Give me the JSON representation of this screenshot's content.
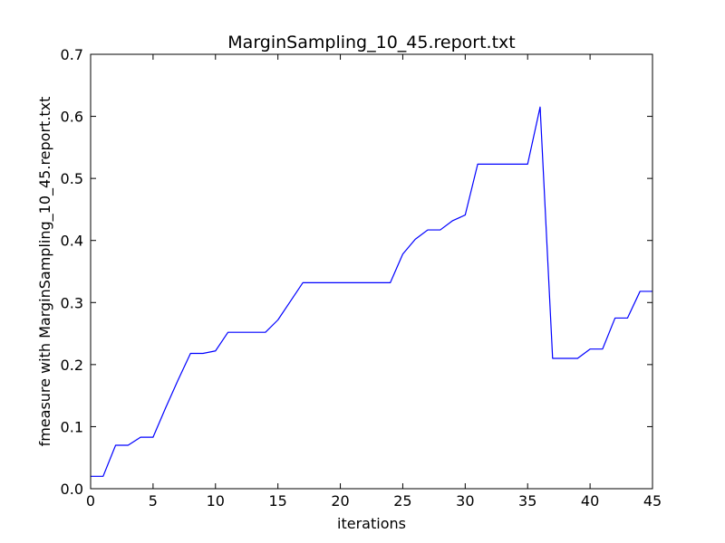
{
  "chart_data": {
    "type": "line",
    "title": "MarginSampling_10_45.report.txt",
    "xlabel": "iterations",
    "ylabel": "fmeasure with MarginSampling_10_45.report.txt",
    "xlim": [
      0,
      45
    ],
    "ylim": [
      0,
      0.7
    ],
    "grid": false,
    "x_ticks": [
      "0",
      "5",
      "10",
      "15",
      "20",
      "25",
      "30",
      "35",
      "40",
      "45"
    ],
    "y_ticks": [
      "0.0",
      "0.1",
      "0.2",
      "0.3",
      "0.4",
      "0.5",
      "0.6",
      "0.7"
    ],
    "line_color": "#0000ff",
    "series": [
      {
        "x": [
          0,
          1,
          2,
          3,
          4,
          5,
          6,
          7,
          8,
          9,
          10,
          11,
          12,
          13,
          14,
          15,
          16,
          17,
          18,
          19,
          20,
          21,
          22,
          23,
          24,
          25,
          26,
          27,
          28,
          29,
          30,
          31,
          32,
          33,
          34,
          35,
          36,
          37,
          38,
          39,
          40,
          41,
          42,
          43,
          44,
          45
        ],
        "y": [
          0.02,
          0.02,
          0.07,
          0.07,
          0.083,
          0.083,
          0.13,
          0.175,
          0.218,
          0.218,
          0.222,
          0.252,
          0.252,
          0.252,
          0.252,
          0.272,
          0.302,
          0.332,
          0.332,
          0.332,
          0.332,
          0.332,
          0.332,
          0.332,
          0.332,
          0.378,
          0.402,
          0.417,
          0.417,
          0.432,
          0.441,
          0.523,
          0.523,
          0.523,
          0.523,
          0.523,
          0.615,
          0.21,
          0.21,
          0.21,
          0.225,
          0.225,
          0.275,
          0.275,
          0.318,
          0.318
        ]
      }
    ]
  }
}
